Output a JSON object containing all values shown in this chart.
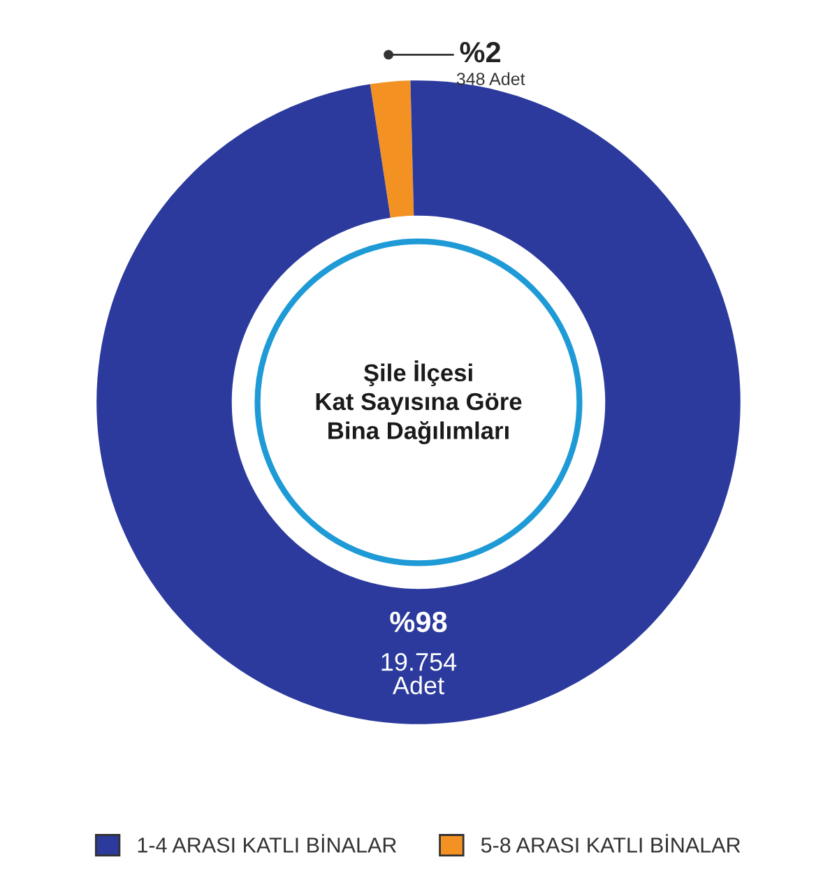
{
  "chart_data": {
    "type": "donut",
    "title": "Şile İlçesi\nKat Sayısına Göre\nBina Dağılımları",
    "categories": [
      "5-8 ARASI KATLI BİNALAR",
      "1-4 ARASI KATLI BİNALAR"
    ],
    "values": [
      2,
      98
    ],
    "colors": [
      "#f39223",
      "#2b3a9c"
    ],
    "value_labels": [
      "%2",
      "%98"
    ],
    "annotations": [
      "348 Adet",
      "19.754\nAdet"
    ],
    "legend": "bottom"
  }
}
